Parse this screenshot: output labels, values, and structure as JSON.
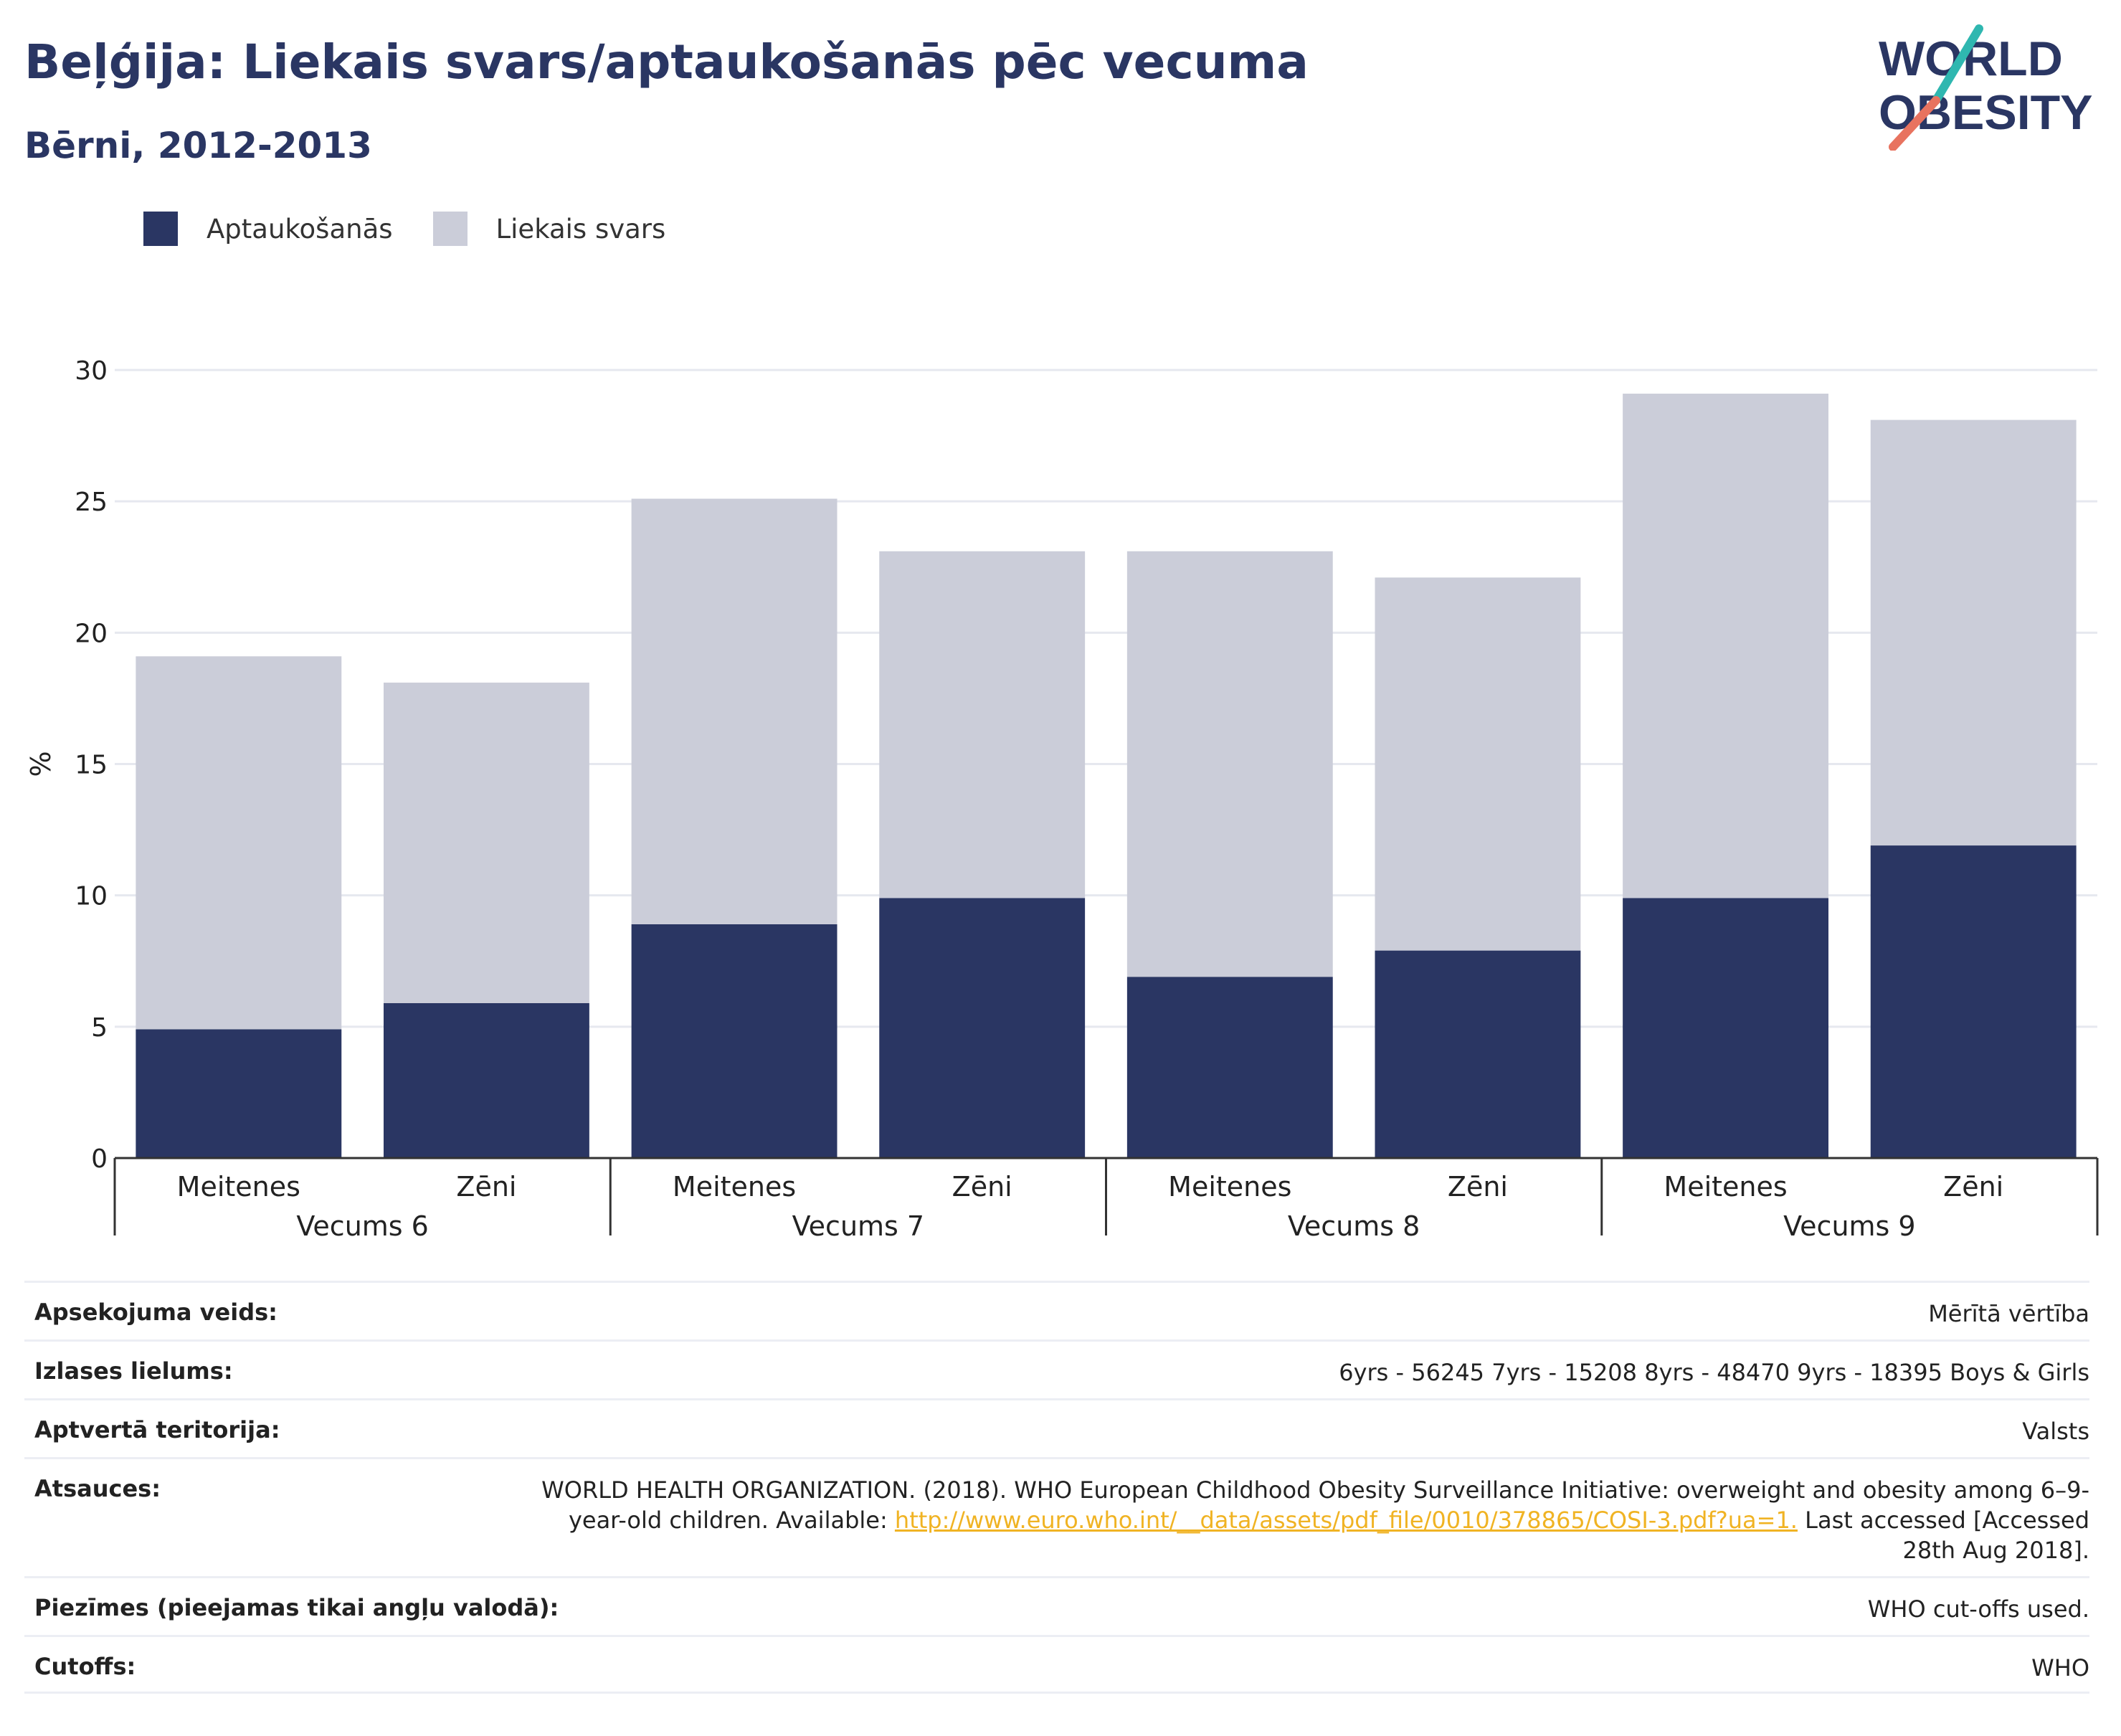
{
  "header": {
    "title": "Beļģija: Liekais svars/aptaukošanās pēc vecuma",
    "subtitle": "Bērni, 2012-2013"
  },
  "logo": {
    "line1": "WORLD",
    "line2": "OBESITY"
  },
  "colors": {
    "obesity": "#2a3663",
    "overweight": "#cbcdd9",
    "title": "#2a3663",
    "link": "#f0b323",
    "logo_teal": "#2fb7b0",
    "logo_coral": "#e8735f"
  },
  "chart_data": {
    "type": "bar",
    "stacked": true,
    "ylabel": "%",
    "ylim": [
      0,
      30
    ],
    "yticks": [
      0,
      5,
      10,
      15,
      20,
      25,
      30
    ],
    "grid": true,
    "legend_position": "top-left",
    "groups": [
      {
        "label": "Vecums 6",
        "categories": [
          "Meitenes",
          "Zēni"
        ]
      },
      {
        "label": "Vecums 7",
        "categories": [
          "Meitenes",
          "Zēni"
        ]
      },
      {
        "label": "Vecums 8",
        "categories": [
          "Meitenes",
          "Zēni"
        ]
      },
      {
        "label": "Vecums 9",
        "categories": [
          "Meitenes",
          "Zēni"
        ]
      }
    ],
    "series": [
      {
        "name": "Aptaukošanās",
        "values": [
          4.9,
          5.9,
          8.9,
          9.9,
          6.9,
          7.9,
          9.9,
          11.9
        ]
      },
      {
        "name": "Liekais svars",
        "values": [
          14.2,
          12.2,
          16.2,
          13.2,
          16.2,
          14.2,
          19.2,
          16.2
        ]
      }
    ]
  },
  "meta": [
    {
      "label": "Apsekojuma veids:",
      "value": "Mērītā vērtība"
    },
    {
      "label": "Izlases lielums:",
      "value": "6yrs - 56245 7yrs - 15208 8yrs - 48470 9yrs - 18395 Boys & Girls"
    },
    {
      "label": "Aptvertā teritorija:",
      "value": "Valsts"
    },
    {
      "label": "Atsauces:",
      "value_pre": "WORLD HEALTH ORGANIZATION. (2018). WHO European Childhood Obesity Surveillance Initiative: overweight and obesity among 6–9-year-old children. Available: ",
      "link": "http://www.euro.who.int/__data/assets/pdf_file/0010/378865/COSI-3.pdf?ua=1.",
      "value_post": " Last accessed [Accessed 28th Aug 2018]."
    },
    {
      "label": "Piezīmes (pieejamas tikai angļu valodā):",
      "value": "WHO cut-offs used."
    },
    {
      "label": "Cutoffs:",
      "value": "WHO"
    }
  ]
}
